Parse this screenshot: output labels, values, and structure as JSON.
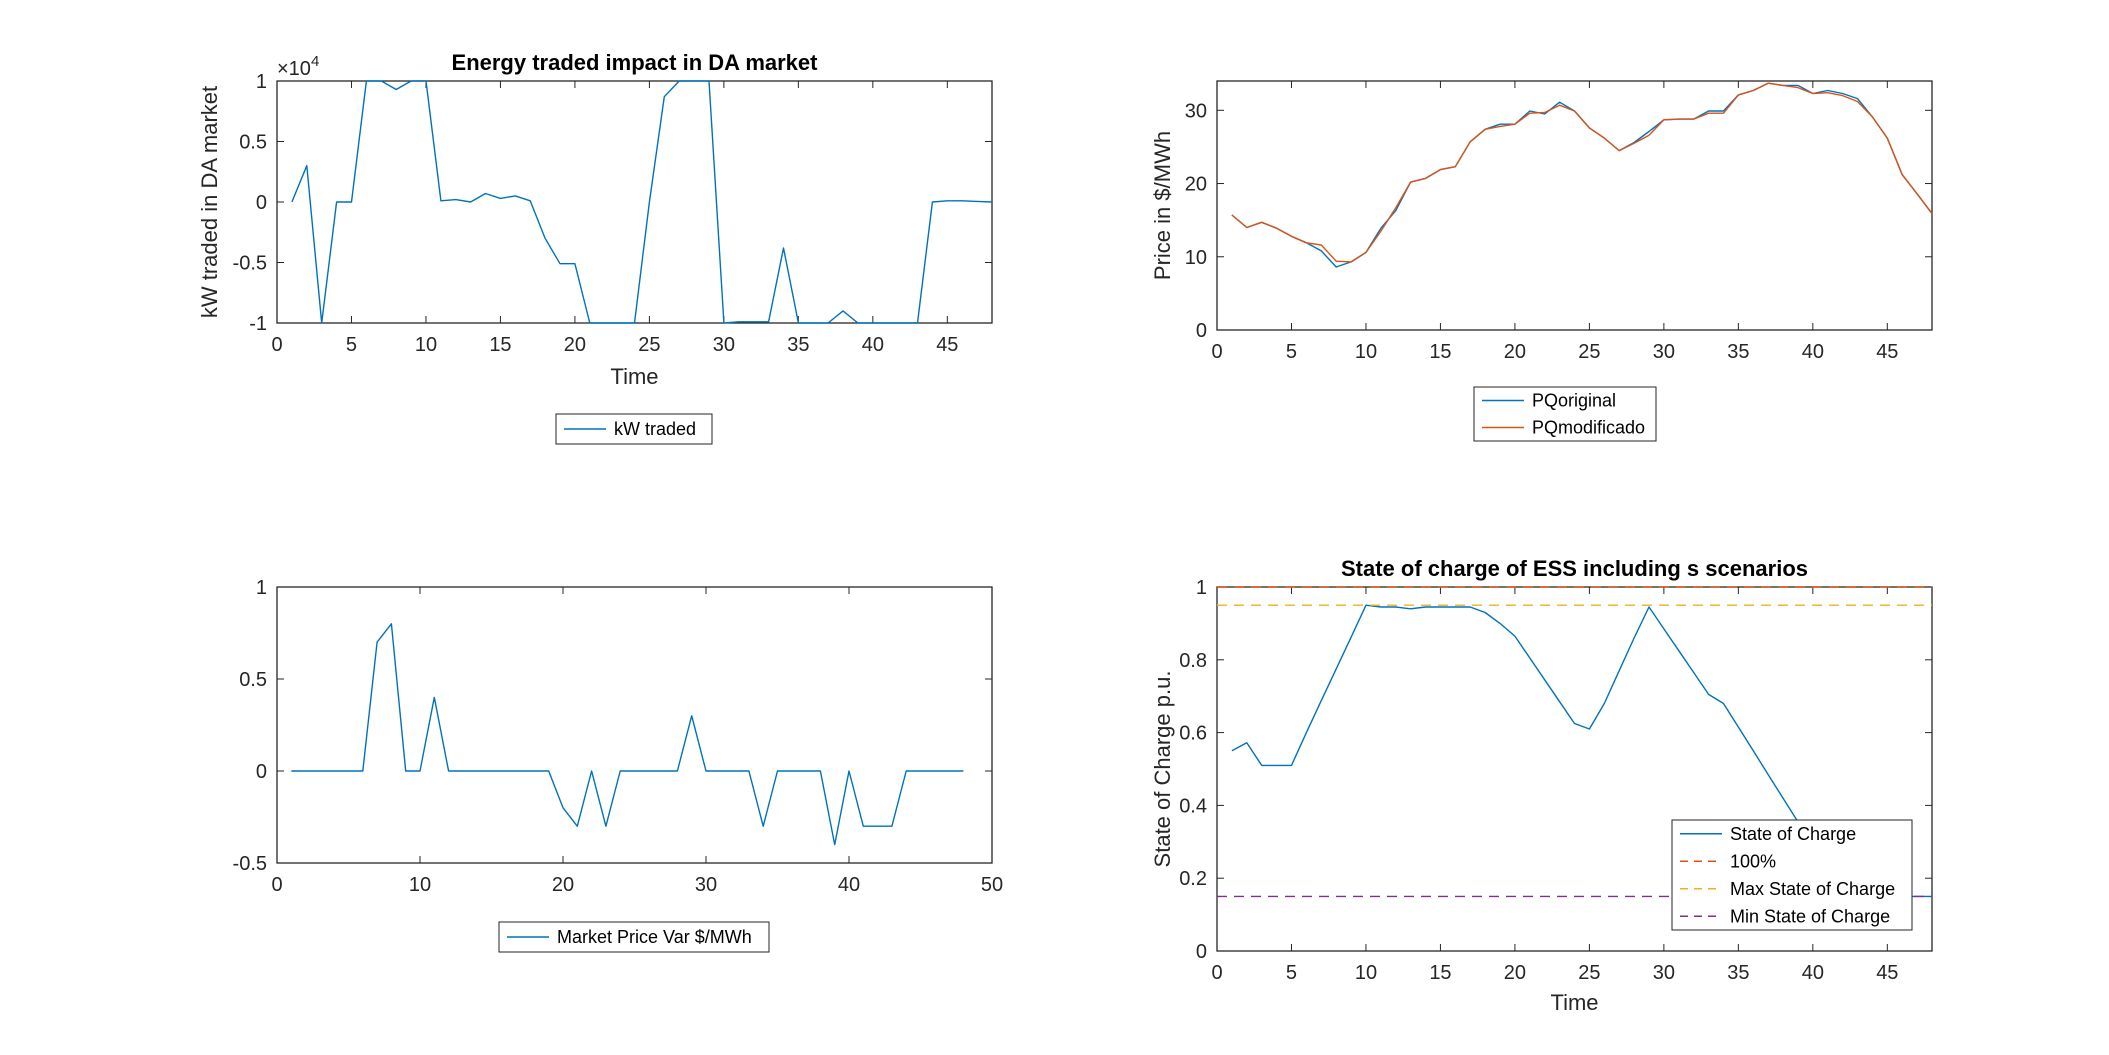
{
  "figure": {
    "background": "#ffffff",
    "colors": {
      "blue": "#0072BD",
      "orange": "#D95319",
      "yellow": "#EDB120",
      "purple": "#7E2F8E",
      "axis": "#262626"
    }
  },
  "chart_data": [
    {
      "id": "energy",
      "type": "line",
      "title": "Energy traded impact in DA market",
      "xlabel": "Time",
      "ylabel": "kW traded in DA market",
      "exponent_label": "×10",
      "exponent_power": "4",
      "xlim": [
        0,
        48
      ],
      "ylim": [
        -1,
        1
      ],
      "xticks": [
        0,
        5,
        10,
        15,
        20,
        25,
        30,
        35,
        40,
        45
      ],
      "xtick_labels": [
        "0",
        "5",
        "10",
        "15",
        "20",
        "25",
        "30",
        "35",
        "40",
        "45"
      ],
      "yticks": [
        -1,
        -0.5,
        0,
        0.5,
        1
      ],
      "ytick_labels": [
        "-1",
        "-0.5",
        "0",
        "0.5",
        "1"
      ],
      "legend": {
        "location": "below-center",
        "entries": [
          {
            "label": "kW traded",
            "color": "#0072BD",
            "dash": "solid"
          }
        ]
      },
      "series": [
        {
          "name": "kW traded",
          "color": "#0072BD",
          "x": [
            1,
            2,
            3,
            4,
            5,
            6,
            7,
            8,
            9,
            10,
            11,
            12,
            13,
            14,
            15,
            16,
            17,
            18,
            19,
            20,
            21,
            22,
            23,
            24,
            25,
            26,
            27,
            28,
            29,
            30,
            31,
            32,
            33,
            34,
            35,
            36,
            37,
            38,
            39,
            40,
            41,
            42,
            43,
            44,
            45,
            46,
            47,
            48
          ],
          "y": [
            0,
            0.3,
            -1,
            0,
            0,
            1,
            1,
            0.93,
            1,
            1,
            0.01,
            0.02,
            0,
            0.07,
            0.03,
            0.05,
            0.01,
            -0.3,
            -0.51,
            -0.51,
            -1,
            -1,
            -1,
            -1,
            0,
            0.87,
            1,
            1,
            1,
            -1,
            -0.99,
            -0.99,
            -0.99,
            -0.38,
            -1,
            -1,
            -1,
            -0.9,
            -1,
            -1,
            -1,
            -1,
            -1,
            0,
            0.01,
            0.01,
            0.005,
            0
          ]
        }
      ]
    },
    {
      "id": "price",
      "type": "line",
      "title": "",
      "xlabel": "",
      "ylabel": "Price in $/MWh",
      "xlim": [
        0,
        48
      ],
      "ylim": [
        0,
        34
      ],
      "xticks": [
        0,
        5,
        10,
        15,
        20,
        25,
        30,
        35,
        40,
        45
      ],
      "xtick_labels": [
        "0",
        "5",
        "10",
        "15",
        "20",
        "25",
        "30",
        "35",
        "40",
        "45"
      ],
      "yticks": [
        0,
        10,
        20,
        30
      ],
      "ytick_labels": [
        "0",
        "10",
        "20",
        "30"
      ],
      "legend": {
        "location": "below-center",
        "entries": [
          {
            "label": "PQoriginal",
            "color": "#0072BD",
            "dash": "solid"
          },
          {
            "label": "PQmodificado",
            "color": "#D95319",
            "dash": "solid"
          }
        ]
      },
      "series": [
        {
          "name": "PQoriginal",
          "color": "#0072BD",
          "x": [
            1,
            2,
            3,
            4,
            5,
            6,
            7,
            8,
            9,
            10,
            11,
            12,
            13,
            14,
            15,
            16,
            17,
            18,
            19,
            20,
            21,
            22,
            23,
            24,
            25,
            26,
            27,
            28,
            29,
            30,
            31,
            32,
            33,
            34,
            35,
            36,
            37,
            38,
            39,
            40,
            41,
            42,
            43,
            44,
            45,
            46,
            47,
            48
          ],
          "y": [
            15.7,
            14,
            14.7,
            13.9,
            12.8,
            11.9,
            10.8,
            8.6,
            9.3,
            10.6,
            13.9,
            16.3,
            20.2,
            20.7,
            21.9,
            22.3,
            25.7,
            27.4,
            28.1,
            28.1,
            29.9,
            29.5,
            31.1,
            29.9,
            27.6,
            26.2,
            24.5,
            25.6,
            27.1,
            28.7,
            28.8,
            28.8,
            29.9,
            29.9,
            32.1,
            32.7,
            33.7,
            33.4,
            33.4,
            32.3,
            32.7,
            32.3,
            31.6,
            29.1,
            26.2,
            21.2,
            18.6,
            15.9
          ]
        },
        {
          "name": "PQmodificado",
          "color": "#D95319",
          "x": [
            1,
            2,
            3,
            4,
            5,
            6,
            7,
            8,
            9,
            10,
            11,
            12,
            13,
            14,
            15,
            16,
            17,
            18,
            19,
            20,
            21,
            22,
            23,
            24,
            25,
            26,
            27,
            28,
            29,
            30,
            31,
            32,
            33,
            34,
            35,
            36,
            37,
            38,
            39,
            40,
            41,
            42,
            43,
            44,
            45,
            46,
            47,
            48
          ],
          "y": [
            15.7,
            14,
            14.7,
            13.9,
            12.8,
            11.9,
            11.6,
            9.4,
            9.3,
            10.6,
            13.5,
            16.7,
            20.2,
            20.7,
            21.9,
            22.3,
            25.7,
            27.4,
            27.8,
            28.1,
            29.6,
            29.7,
            30.7,
            29.9,
            27.6,
            26.2,
            24.5,
            25.5,
            26.6,
            28.7,
            28.8,
            28.8,
            29.6,
            29.6,
            32.1,
            32.7,
            33.7,
            33.4,
            33.1,
            32.3,
            32.4,
            32,
            31.2,
            29.1,
            26.2,
            21.2,
            18.6,
            15.9
          ]
        }
      ]
    },
    {
      "id": "marketvar",
      "type": "line",
      "title": "",
      "xlabel": "",
      "ylabel": "",
      "xlim": [
        0,
        50
      ],
      "ylim": [
        -0.5,
        1
      ],
      "xticks": [
        0,
        10,
        20,
        30,
        40,
        50
      ],
      "xtick_labels": [
        "0",
        "10",
        "20",
        "30",
        "40",
        "50"
      ],
      "yticks": [
        -0.5,
        0,
        0.5,
        1
      ],
      "ytick_labels": [
        "-0.5",
        "0",
        "0.5",
        "1"
      ],
      "legend": {
        "location": "below-center",
        "entries": [
          {
            "label": "Market Price Var $/MWh",
            "color": "#0072BD",
            "dash": "solid"
          }
        ]
      },
      "series": [
        {
          "name": "Market Price Var $/MWh",
          "color": "#0072BD",
          "x": [
            1,
            2,
            3,
            4,
            5,
            6,
            7,
            8,
            9,
            10,
            11,
            12,
            13,
            14,
            15,
            16,
            17,
            18,
            19,
            20,
            21,
            22,
            23,
            24,
            25,
            26,
            27,
            28,
            29,
            30,
            31,
            32,
            33,
            34,
            35,
            36,
            37,
            38,
            39,
            40,
            41,
            42,
            43,
            44,
            45,
            46,
            47,
            48
          ],
          "y": [
            0,
            0,
            0,
            0,
            0,
            0,
            0.7,
            0.8,
            0,
            0,
            0.4,
            0,
            0,
            0,
            0,
            0,
            0,
            0,
            0,
            -0.2,
            -0.3,
            0,
            -0.3,
            0,
            0,
            0,
            0,
            0,
            0.3,
            0,
            0,
            0,
            0,
            -0.3,
            0,
            0,
            0,
            0,
            -0.4,
            0,
            -0.3,
            -0.3,
            -0.3,
            0,
            0,
            0,
            0,
            0
          ]
        }
      ]
    },
    {
      "id": "soc",
      "type": "line",
      "title": "State of charge of ESS including s scenarios",
      "xlabel": "Time",
      "ylabel": "State of Charge p.u.",
      "xlim": [
        0,
        48
      ],
      "ylim": [
        0,
        1
      ],
      "xticks": [
        0,
        5,
        10,
        15,
        20,
        25,
        30,
        35,
        40,
        45
      ],
      "xtick_labels": [
        "0",
        "5",
        "10",
        "15",
        "20",
        "25",
        "30",
        "35",
        "40",
        "45"
      ],
      "yticks": [
        0,
        0.2,
        0.4,
        0.6,
        0.8,
        1
      ],
      "ytick_labels": [
        "0",
        "0.2",
        "0.4",
        "0.6",
        "0.8",
        "1"
      ],
      "legend": {
        "location": "bottom-right",
        "entries": [
          {
            "label": "State of Charge",
            "color": "#0072BD",
            "dash": "solid"
          },
          {
            "label": "100%",
            "color": "#D95319",
            "dash": "dashed"
          },
          {
            "label": "Max State of Charge",
            "color": "#EDB120",
            "dash": "dashed"
          },
          {
            "label": "Min State of Charge",
            "color": "#7E2F8E",
            "dash": "dashed"
          }
        ]
      },
      "series": [
        {
          "name": "State of Charge",
          "color": "#0072BD",
          "dash": "solid",
          "x": [
            1,
            2,
            3,
            4,
            5,
            6,
            7,
            8,
            9,
            10,
            11,
            12,
            13,
            14,
            15,
            16,
            17,
            18,
            19,
            20,
            21,
            22,
            23,
            24,
            25,
            26,
            27,
            28,
            29,
            30,
            31,
            32,
            33,
            34,
            35,
            36,
            37,
            38,
            39,
            40,
            41,
            42,
            43,
            44,
            45,
            46,
            47,
            48
          ],
          "y": [
            0.55,
            0.572,
            0.51,
            0.51,
            0.51,
            0.6,
            0.688,
            0.775,
            0.862,
            0.95,
            0.945,
            0.945,
            0.94,
            0.945,
            0.945,
            0.945,
            0.945,
            0.93,
            0.9,
            0.865,
            0.805,
            0.745,
            0.685,
            0.625,
            0.61,
            0.68,
            0.77,
            0.86,
            0.945,
            0.885,
            0.825,
            0.765,
            0.705,
            0.68,
            0.615,
            0.55,
            0.485,
            0.42,
            0.355,
            0.3,
            0.255,
            0.2,
            0.16,
            0.15,
            0.15,
            0.15,
            0.15,
            0.15
          ]
        },
        {
          "name": "100%",
          "color": "#D95319",
          "dash": "dashed",
          "x": [
            0,
            48
          ],
          "y": [
            1,
            1
          ]
        },
        {
          "name": "Max State of Charge",
          "color": "#EDB120",
          "dash": "dashed",
          "x": [
            0,
            48
          ],
          "y": [
            0.95,
            0.95
          ]
        },
        {
          "name": "Min State of Charge",
          "color": "#7E2F8E",
          "dash": "dashed",
          "x": [
            0,
            48
          ],
          "y": [
            0.15,
            0.15
          ]
        }
      ]
    }
  ]
}
